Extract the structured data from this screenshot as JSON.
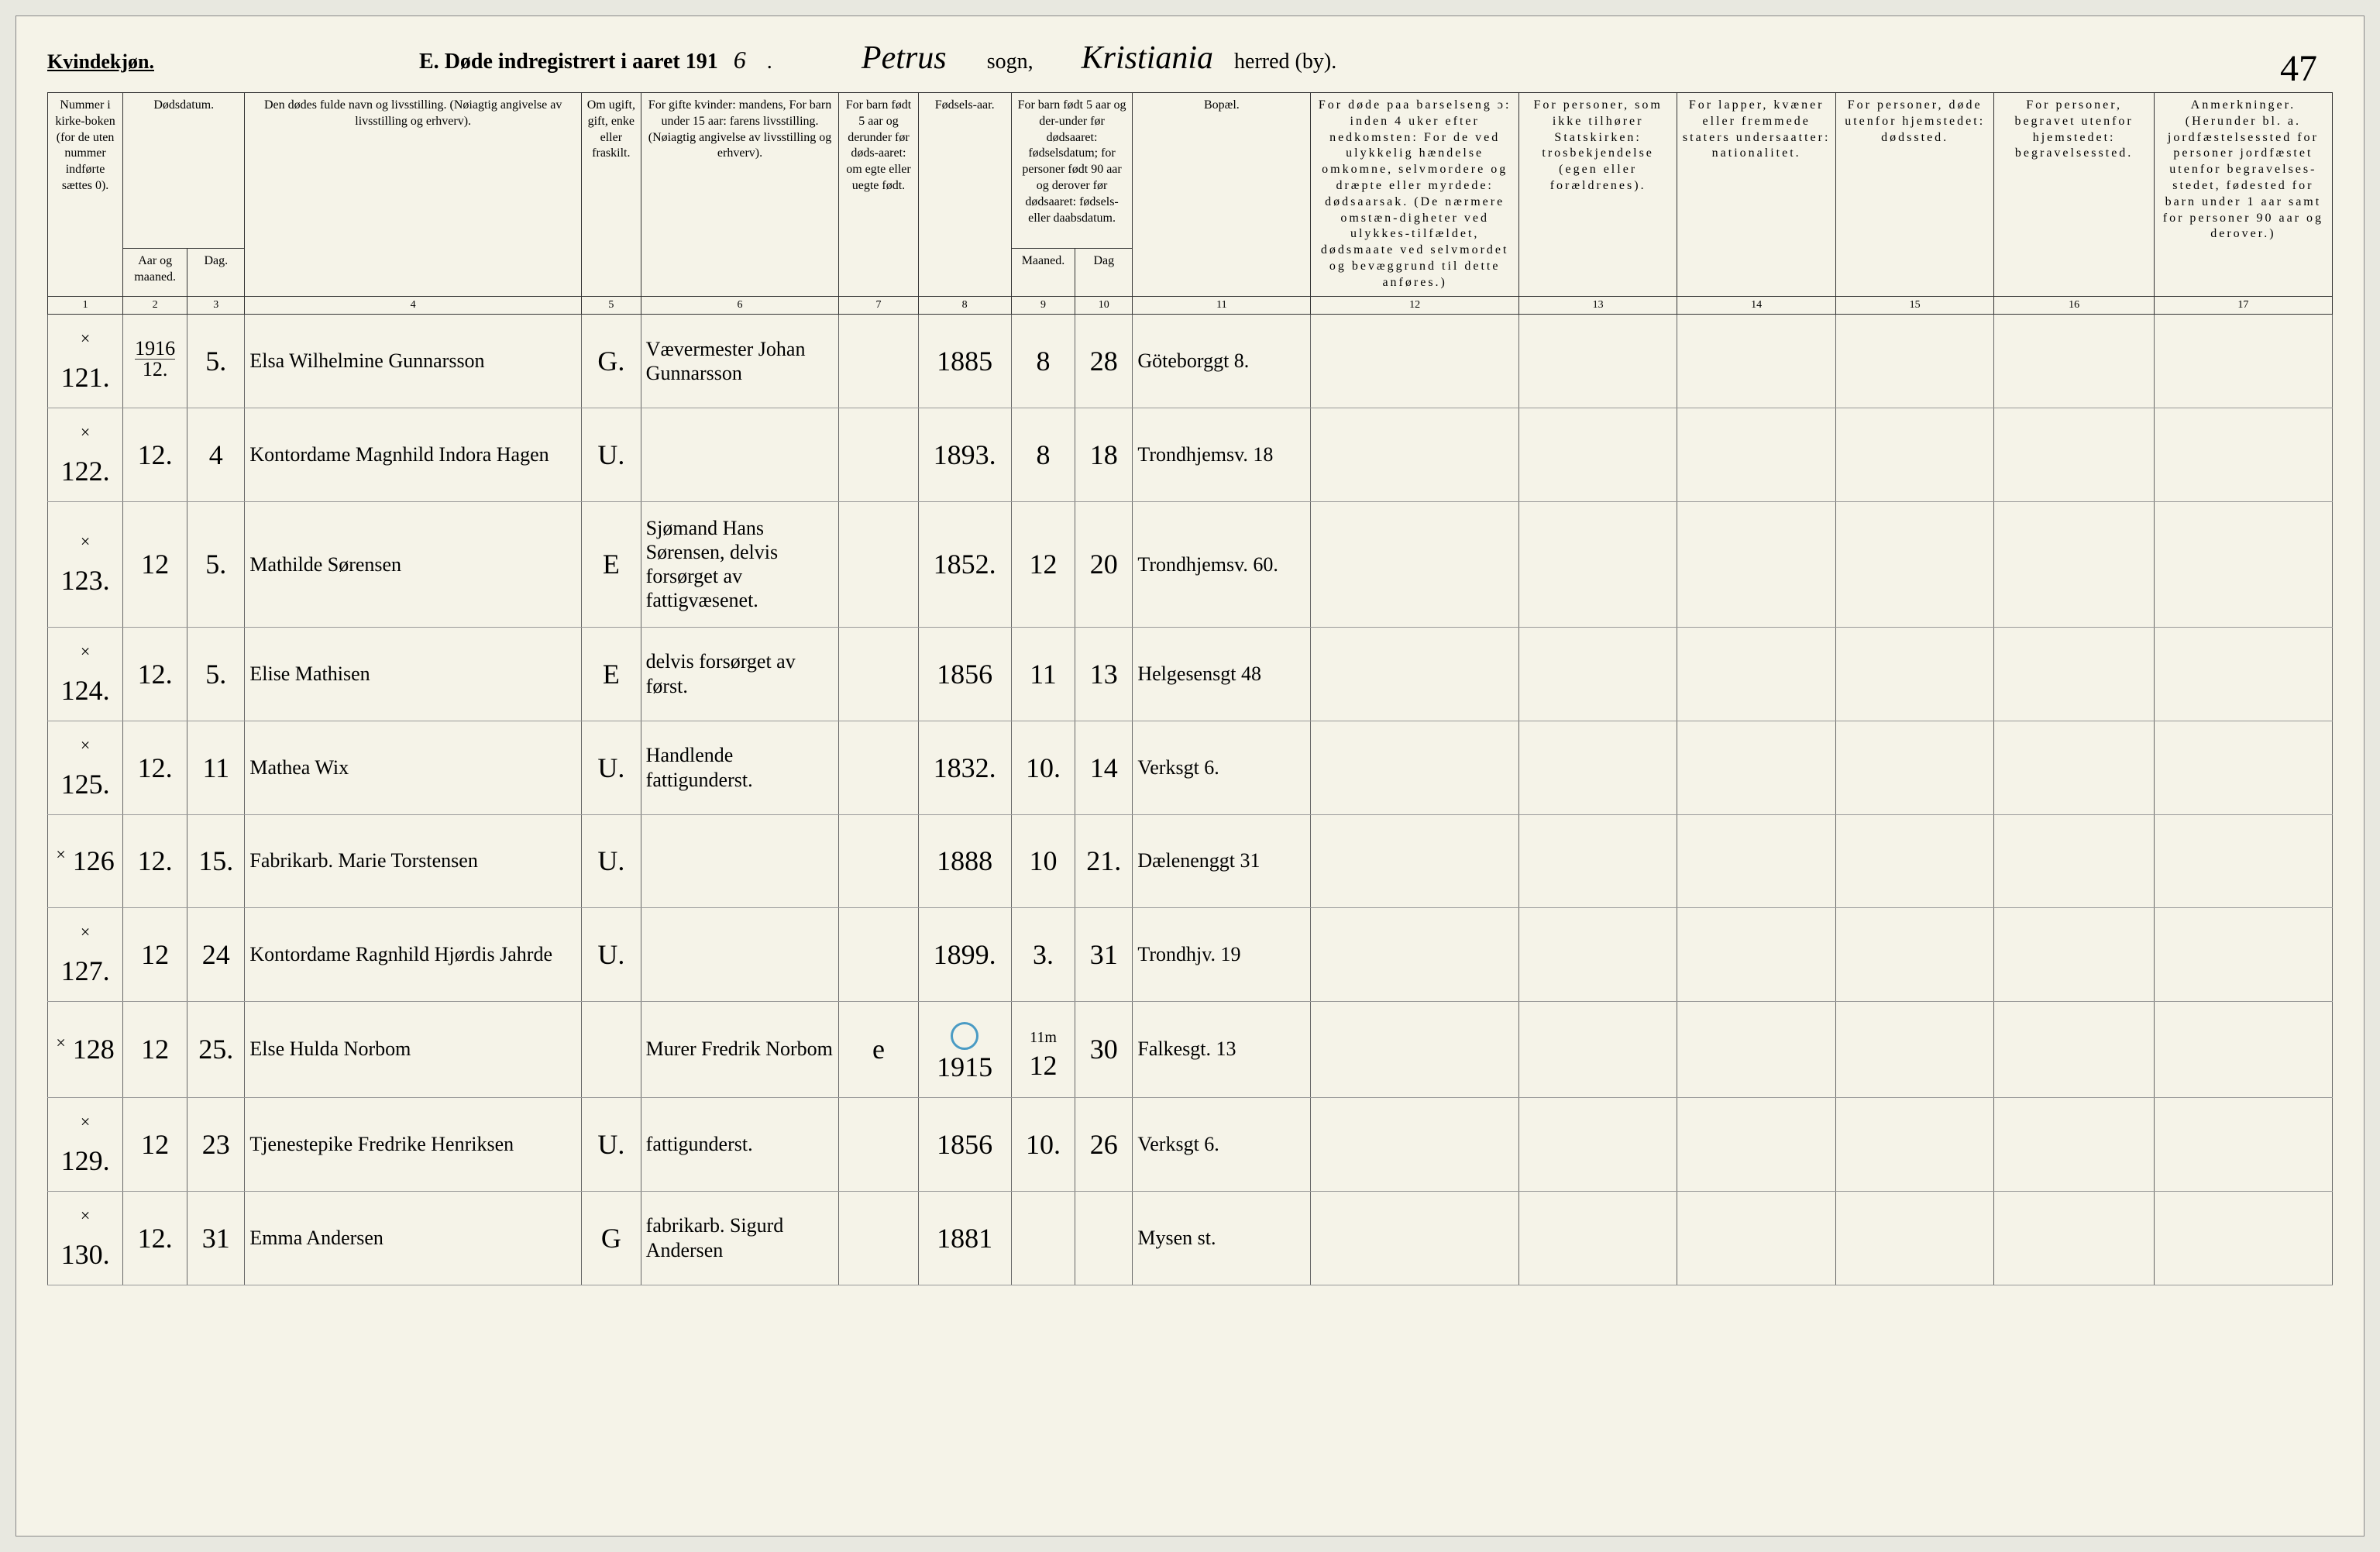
{
  "header": {
    "gender": "Kvindekjøn.",
    "section_letter": "E.",
    "title_prefix": "Døde indregistrert i aaret 191",
    "year_suffix": "6",
    "parish_label": "sogn,",
    "parish": "Petrus",
    "district_label": "herred (by).",
    "district": "Kristiania",
    "page_number": "47"
  },
  "columns": {
    "c1": "Nummer i kirke-boken (for de uten nummer indførte sættes 0).",
    "c2_top": "Dødsdatum.",
    "c2a": "Aar og maaned.",
    "c2b": "Dag.",
    "c4": "Den dødes fulde navn og livsstilling. (Nøiagtig angivelse av livsstilling og erhverv).",
    "c5": "Om ugift, gift, enke eller fraskilt.",
    "c6": "For gifte kvinder: mandens, For barn under 15 aar: farens livsstilling. (Nøiagtig angivelse av livsstilling og erhverv).",
    "c7": "For barn født 5 aar og derunder før døds-aaret: om egte eller uegte født.",
    "c8": "Fødsels-aar.",
    "c9_top": "For barn født 5 aar og der-under før dødsaaret: fødselsdatum; for personer født 90 aar og derover før dødsaaret: fødsels- eller daabsdatum.",
    "c9a": "Maaned.",
    "c9b": "Dag",
    "c11": "Bopæl.",
    "c12": "For døde paa barselseng ɔ: inden 4 uker efter nedkomsten: For de ved ulykkelig hændelse omkomne, selvmordere og dræpte eller myrdede: dødsaarsak. (De nærmere omstæn-digheter ved ulykkes-tilfældet, dødsmaate ved selvmordet og bevæggrund til dette anføres.)",
    "c13": "For personer, som ikke tilhører Statskirken: trosbekjendelse (egen eller forældrenes).",
    "c14": "For lapper, kvæner eller fremmede staters undersaatter: nationalitet.",
    "c15": "For personer, døde utenfor hjemstedet: dødssted.",
    "c16": "For personer, begravet utenfor hjemstedet: begravelsessted.",
    "c17": "Anmerkninger. (Herunder bl. a. jordfæstelsessted for personer jordfæstet utenfor begravelses-stedet, fødested for barn under 1 aar samt for personer 90 aar og derover.)"
  },
  "colnums": [
    "1",
    "2",
    "3",
    "4",
    "5",
    "6",
    "7",
    "8",
    "9",
    "10",
    "11",
    "12",
    "13",
    "14",
    "15",
    "16",
    "17"
  ],
  "rows": [
    {
      "num": "121.",
      "year_top": "1916",
      "year_bot": "12.",
      "day": "5.",
      "name": "Elsa Wilhelmine Gunnarsson",
      "status": "G.",
      "spouse": "Vævermester Johan Gunnarsson",
      "legit": "",
      "birth_year": "1885",
      "b_month": "8",
      "b_day": "28",
      "residence": "Göteborggt 8."
    },
    {
      "num": "122.",
      "month": "12.",
      "day": "4",
      "name": "Kontordame Magnhild Indora Hagen",
      "status": "U.",
      "spouse": "",
      "legit": "",
      "birth_year": "1893.",
      "b_month": "8",
      "b_day": "18",
      "residence": "Trondhjemsv. 18"
    },
    {
      "num": "123.",
      "month": "12",
      "day": "5.",
      "name": "Mathilde Sørensen",
      "status": "E",
      "spouse": "Sjømand Hans Sørensen, delvis forsørget av fattigvæsenet.",
      "legit": "",
      "birth_year": "1852.",
      "b_month": "12",
      "b_day": "20",
      "residence": "Trondhjemsv. 60."
    },
    {
      "num": "124.",
      "month": "12.",
      "day": "5.",
      "name": "Elise Mathisen",
      "status": "E",
      "spouse": "delvis forsørget av først.",
      "legit": "",
      "birth_year": "1856",
      "b_month": "11",
      "b_day": "13",
      "residence": "Helgesensgt 48",
      "note": ""
    },
    {
      "num": "125.",
      "month": "12.",
      "day": "11",
      "name": "Mathea Wix",
      "status": "U.",
      "spouse": "Handlende fattigunderst.",
      "legit": "",
      "birth_year": "1832.",
      "b_month": "10.",
      "b_day": "14",
      "residence": "Verksgt 6."
    },
    {
      "num": "126",
      "month": "12.",
      "day": "15.",
      "name": "Fabrikarb. Marie Torstensen",
      "status": "U.",
      "spouse": "",
      "legit": "",
      "birth_year": "1888",
      "b_month": "10",
      "b_day": "21.",
      "residence": "Dælenenggt 31"
    },
    {
      "num": "127.",
      "month": "12",
      "day": "24",
      "name": "Kontordame Ragnhild Hjørdis Jahrde",
      "status": "U.",
      "spouse": "",
      "legit": "",
      "birth_year": "1899.",
      "b_month": "3.",
      "b_day": "31",
      "residence": "Trondhjv. 19"
    },
    {
      "num": "128",
      "month": "12",
      "day": "25.",
      "name": "Else Hulda Norbom",
      "status": "",
      "spouse": "Murer Fredrik Norbom",
      "legit": "e",
      "birth_year": "1915",
      "b_month": "12",
      "b_day": "30",
      "residence": "Falkesgt. 13",
      "circle": true,
      "b_month_note": "11m"
    },
    {
      "num": "129.",
      "month": "12",
      "day": "23",
      "name": "Tjenestepike Fredrike Henriksen",
      "status": "U.",
      "spouse": "fattigunderst.",
      "legit": "",
      "birth_year": "1856",
      "b_month": "10.",
      "b_day": "26",
      "residence": "Verksgt 6."
    },
    {
      "num": "130.",
      "month": "12.",
      "day": "31",
      "name": "Emma Andersen",
      "status": "G",
      "spouse": "fabrikarb. Sigurd Andersen",
      "legit": "",
      "birth_year": "1881",
      "b_month": "",
      "b_day": "",
      "residence": "Mysen st."
    }
  ],
  "styling": {
    "page_bg": "#f5f3e8",
    "outer_bg": "#e8e8e0",
    "border_color": "#333333",
    "script_font": "Brush Script MT",
    "header_fontsize": 28,
    "cell_fontsize": 34,
    "circle_color": "#4a9bc4"
  }
}
